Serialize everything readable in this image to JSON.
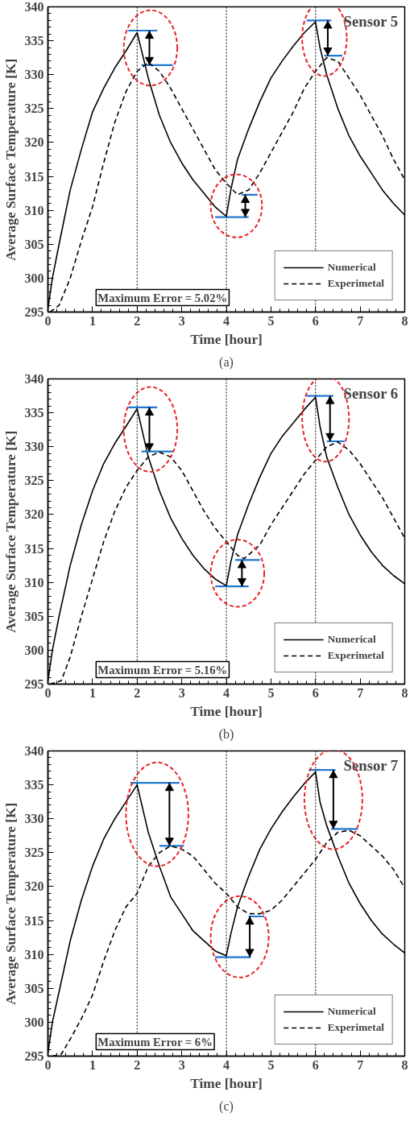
{
  "chart_data": [
    {
      "type": "line",
      "xlabel": "Time [hour]",
      "ylabel": "Average Surface Temperature [K]",
      "xlim": [
        0,
        8
      ],
      "ylim": [
        295,
        340
      ],
      "xticks": [
        0,
        1,
        2,
        3,
        4,
        5,
        6,
        7,
        8
      ],
      "yticks": [
        295,
        300,
        305,
        310,
        315,
        320,
        325,
        330,
        335,
        340
      ],
      "grid": false,
      "legend": "bottom right",
      "marker": "none",
      "annotations": [
        "Sensor 5",
        "Maximum Error = 5.02%",
        "(a)"
      ],
      "ref_lines": [
        {
          "axis": "x",
          "value": 2,
          "color": "#000000",
          "line_style": "dotted"
        },
        {
          "axis": "x",
          "value": 4,
          "color": "#000000",
          "line_style": "dotted"
        },
        {
          "axis": "x",
          "value": 6,
          "color": "#000000",
          "line_style": "dotted"
        }
      ],
      "series": [
        {
          "name": "Numerical",
          "color": "#000000",
          "line_style": "solid",
          "x": [
            0,
            0.1,
            0.25,
            0.5,
            0.75,
            1,
            1.25,
            1.5,
            1.75,
            2,
            2.25,
            2.5,
            2.75,
            3,
            3.25,
            3.5,
            3.75,
            4,
            4.1,
            4.25,
            4.5,
            4.75,
            5,
            5.25,
            5.5,
            5.75,
            6,
            6.1,
            6.25,
            6.5,
            6.75,
            7,
            7.25,
            7.5,
            7.75,
            8
          ],
          "values": [
            295.5,
            300,
            305,
            313,
            319,
            324.5,
            328,
            331,
            333.5,
            336.2,
            329.5,
            324,
            320,
            317,
            314.5,
            312.5,
            310.5,
            309.1,
            313,
            317.5,
            322,
            326,
            329.5,
            332,
            334.2,
            336.2,
            337.8,
            334,
            330,
            325,
            321,
            318,
            315.5,
            313,
            311,
            309.3
          ]
        },
        {
          "color": "#1f77d0",
          "line_style": "solid",
          "x": [
            1.8,
            2.45,
            null,
            2.1,
            2.8,
            null,
            3.75,
            4.5,
            null,
            4.35,
            4.7,
            null,
            5.8,
            6.35,
            null,
            6.2,
            6.6
          ],
          "values": [
            336.5,
            336.5,
            null,
            331.4,
            331.4,
            null,
            309,
            309,
            null,
            312.3,
            312.3,
            null,
            338,
            338,
            null,
            332.8,
            332.8
          ]
        },
        {
          "name": "Experimetal",
          "color": "#000000",
          "line_style": "dashed",
          "x": [
            0.05,
            0.25,
            0.5,
            0.75,
            1,
            1.25,
            1.5,
            1.75,
            2,
            2.25,
            2.5,
            2.75,
            3,
            3.25,
            3.5,
            3.75,
            4,
            4.25,
            4.5,
            4.75,
            5,
            5.25,
            5.5,
            5.75,
            6,
            6.25,
            6.5,
            6.75,
            7,
            7.25,
            7.5,
            7.75,
            8
          ],
          "values": [
            295,
            296,
            300,
            305.5,
            310.5,
            317,
            323,
            327.5,
            330.5,
            331.8,
            330.5,
            328,
            325,
            322,
            319,
            316,
            314,
            312.3,
            313,
            315.5,
            318.5,
            321.5,
            324.5,
            328,
            330.5,
            332.5,
            332,
            329.5,
            327,
            324,
            321,
            317.5,
            314.5
          ]
        }
      ]
    },
    {
      "type": "line",
      "xlabel": "Time [hour]",
      "ylabel": "Average Surface Temperature [K]",
      "xlim": [
        0,
        8
      ],
      "ylim": [
        295,
        340
      ],
      "xticks": [
        0,
        1,
        2,
        3,
        4,
        5,
        6,
        7,
        8
      ],
      "yticks": [
        295,
        300,
        305,
        310,
        315,
        320,
        325,
        330,
        335,
        340
      ],
      "grid": false,
      "legend": "bottom right",
      "marker": "none",
      "annotations": [
        "Sensor 6",
        "Maximum Error = 5.16%",
        "(b)"
      ],
      "ref_lines": [
        {
          "axis": "x",
          "value": 2,
          "color": "#000000",
          "line_style": "dotted"
        },
        {
          "axis": "x",
          "value": 4,
          "color": "#000000",
          "line_style": "dotted"
        },
        {
          "axis": "x",
          "value": 6,
          "color": "#000000",
          "line_style": "dotted"
        }
      ],
      "series": [
        {
          "name": "Numerical",
          "color": "#000000",
          "line_style": "solid",
          "x": [
            0,
            0.1,
            0.25,
            0.5,
            0.75,
            1,
            1.25,
            1.5,
            1.75,
            2,
            2.25,
            2.5,
            2.75,
            3,
            3.25,
            3.5,
            3.75,
            4,
            4.1,
            4.25,
            4.5,
            4.75,
            5,
            5.25,
            5.5,
            5.75,
            6,
            6.1,
            6.25,
            6.5,
            6.75,
            7,
            7.25,
            7.5,
            7.75,
            8
          ],
          "values": [
            295.5,
            300,
            305,
            312.5,
            318.5,
            323.5,
            327.5,
            330.5,
            333,
            335.6,
            328.5,
            323.5,
            319.5,
            316.5,
            314,
            312,
            310.5,
            309.5,
            313,
            317,
            321.5,
            325.5,
            329,
            331.5,
            333.5,
            335.5,
            337.3,
            333,
            328.5,
            324,
            320,
            317,
            314.5,
            312.5,
            311,
            309.8
          ]
        },
        {
          "color": "#1f77d0",
          "line_style": "solid",
          "x": [
            1.8,
            2.45,
            null,
            2.1,
            2.8,
            null,
            3.75,
            4.5,
            null,
            4.2,
            4.75,
            null,
            5.8,
            6.4,
            null,
            6.25,
            6.65
          ],
          "values": [
            335.8,
            335.8,
            null,
            329.3,
            329.3,
            null,
            309.4,
            309.4,
            null,
            313.3,
            313.3,
            null,
            337.5,
            337.5,
            null,
            330.8,
            330.8
          ]
        },
        {
          "name": "Experimetal",
          "color": "#000000",
          "line_style": "dashed",
          "x": [
            0.05,
            0.3,
            0.5,
            0.75,
            1,
            1.25,
            1.5,
            1.75,
            2,
            2.25,
            2.5,
            2.75,
            3,
            3.25,
            3.5,
            3.75,
            4,
            4.25,
            4.4,
            4.75,
            5,
            5.25,
            5.5,
            5.75,
            6,
            6.25,
            6.5,
            6.75,
            7,
            7.25,
            7.5,
            7.75,
            8
          ],
          "values": [
            295,
            295.5,
            299,
            305,
            310.5,
            316,
            320.5,
            324,
            326.5,
            328.5,
            329.2,
            328.5,
            326.5,
            323.5,
            320.5,
            318,
            316,
            314,
            313.5,
            315.5,
            318.5,
            321,
            323.5,
            326,
            328,
            330,
            330.7,
            329.5,
            327.5,
            325,
            322.5,
            319.5,
            316.5
          ]
        }
      ]
    },
    {
      "type": "line",
      "xlabel": "Time [hour]",
      "ylabel": "Average Surface Temperature [K]",
      "xlim": [
        0,
        8
      ],
      "ylim": [
        295,
        340
      ],
      "xticks": [
        0,
        1,
        2,
        3,
        4,
        5,
        6,
        7,
        8
      ],
      "yticks": [
        295,
        300,
        305,
        310,
        315,
        320,
        325,
        330,
        335,
        340
      ],
      "grid": false,
      "legend": "bottom right",
      "marker": "none",
      "annotations": [
        "Sensor 7",
        "Maximum Error = 6%",
        "(c)"
      ],
      "ref_lines": [
        {
          "axis": "x",
          "value": 2,
          "color": "#000000",
          "line_style": "dotted"
        },
        {
          "axis": "x",
          "value": 4,
          "color": "#000000",
          "line_style": "dotted"
        },
        {
          "axis": "x",
          "value": 6,
          "color": "#000000",
          "line_style": "dotted"
        }
      ],
      "series": [
        {
          "name": "Numerical",
          "color": "#000000",
          "line_style": "solid",
          "x": [
            0,
            0.1,
            0.25,
            0.5,
            0.75,
            1,
            1.25,
            1.5,
            1.75,
            2,
            2.25,
            2.5,
            2.75,
            3,
            3.25,
            3.5,
            3.75,
            4,
            4.1,
            4.25,
            4.5,
            4.75,
            5,
            5.25,
            5.5,
            5.75,
            6,
            6.1,
            6.25,
            6.5,
            6.75,
            7,
            7.25,
            7.5,
            7.75,
            8
          ],
          "values": [
            295.5,
            300,
            304.5,
            312,
            318,
            323,
            327,
            330,
            332.5,
            335,
            328,
            323,
            318.5,
            316,
            313.5,
            312,
            310.5,
            309.8,
            313,
            317,
            321.5,
            325.5,
            328.5,
            331,
            333.2,
            335.2,
            336.9,
            332.5,
            329,
            324.5,
            320.5,
            317.5,
            315,
            313,
            311.5,
            310.2
          ]
        },
        {
          "color": "#1f77d0",
          "line_style": "solid",
          "x": [
            1.85,
            2.95,
            null,
            2.5,
            3.05,
            null,
            3.75,
            4.55,
            null,
            4.5,
            4.85,
            null,
            5.85,
            6.45,
            null,
            6.35,
            6.95
          ],
          "values": [
            335.3,
            335.3,
            null,
            326,
            326,
            null,
            309.6,
            309.6,
            null,
            315.6,
            315.6,
            null,
            337.2,
            337.2,
            null,
            328.5,
            328.5
          ]
        },
        {
          "name": "Experimetal",
          "color": "#000000",
          "line_style": "dashed",
          "x": [
            0.1,
            0.3,
            0.5,
            0.75,
            1,
            1.25,
            1.5,
            1.75,
            2,
            2.25,
            2.5,
            2.75,
            3,
            3.25,
            3.5,
            3.75,
            4,
            4.25,
            4.5,
            4.75,
            5,
            5.25,
            5.5,
            5.75,
            6,
            6.25,
            6.5,
            6.75,
            7,
            7.25,
            7.5,
            7.75,
            8
          ],
          "values": [
            295,
            295.3,
            297.5,
            300.5,
            304,
            309,
            313.5,
            317,
            319,
            323,
            325,
            326,
            325.5,
            324.5,
            322.5,
            320.5,
            319,
            317,
            316,
            316,
            316.5,
            318,
            320,
            322,
            324,
            326.5,
            328,
            328.3,
            327.5,
            326,
            324.5,
            322.5,
            319.8
          ]
        }
      ]
    }
  ]
}
